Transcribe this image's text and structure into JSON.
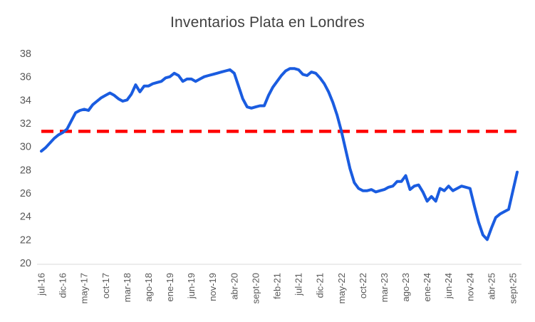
{
  "chart_data": {
    "type": "line",
    "title": "Inventarios Plata en Londres",
    "xlabel": "",
    "ylabel": "",
    "ylim": [
      20,
      38
    ],
    "y_ticks": [
      20,
      22,
      24,
      26,
      28,
      30,
      32,
      34,
      36,
      38
    ],
    "grid": false,
    "legend": "none",
    "tick_every": 5,
    "x_tick_labels_visible": [
      "jul-16",
      "dic-16",
      "may-17",
      "oct-17",
      "mar-18",
      "ago-18",
      "ene-19",
      "jun-19",
      "nov-19",
      "abr-20",
      "sept-20",
      "feb-21",
      "jul-21",
      "dic-21",
      "may-22",
      "oct-22",
      "mar-23",
      "ago-23",
      "ene-24",
      "jun-24",
      "nov-24",
      "abr-25",
      "sept-25"
    ],
    "x": [
      "jul-16",
      "ago-16",
      "sept-16",
      "oct-16",
      "nov-16",
      "dic-16",
      "ene-17",
      "feb-17",
      "mar-17",
      "abr-17",
      "may-17",
      "jun-17",
      "jul-17",
      "ago-17",
      "sept-17",
      "oct-17",
      "nov-17",
      "dic-17",
      "ene-18",
      "feb-18",
      "mar-18",
      "abr-18",
      "may-18",
      "jun-18",
      "jul-18",
      "ago-18",
      "sept-18",
      "oct-18",
      "nov-18",
      "dic-18",
      "ene-19",
      "feb-19",
      "mar-19",
      "abr-19",
      "may-19",
      "jun-19",
      "jul-19",
      "ago-19",
      "sept-19",
      "oct-19",
      "nov-19",
      "dic-19",
      "ene-20",
      "feb-20",
      "mar-20",
      "abr-20",
      "may-20",
      "jun-20",
      "jul-20",
      "ago-20",
      "sept-20",
      "oct-20",
      "nov-20",
      "dic-20",
      "ene-21",
      "feb-21",
      "mar-21",
      "abr-21",
      "may-21",
      "jun-21",
      "jul-21",
      "ago-21",
      "sept-21",
      "oct-21",
      "nov-21",
      "dic-21",
      "ene-22",
      "feb-22",
      "mar-22",
      "abr-22",
      "may-22",
      "jun-22",
      "jul-22",
      "ago-22",
      "sept-22",
      "oct-22",
      "nov-22",
      "dic-22",
      "ene-23",
      "feb-23",
      "mar-23",
      "abr-23",
      "may-23",
      "jun-23",
      "jul-23",
      "ago-23",
      "sept-23",
      "oct-23",
      "nov-23",
      "dic-23",
      "ene-24",
      "feb-24",
      "mar-24",
      "abr-24",
      "may-24",
      "jun-24",
      "jul-24",
      "ago-24",
      "sept-24",
      "oct-24",
      "nov-24",
      "dic-24",
      "ene-25",
      "feb-25",
      "mar-25",
      "abr-25",
      "may-25",
      "jun-25",
      "jul-25",
      "ago-25",
      "sept-25",
      "oct-25"
    ],
    "series": [
      {
        "name": "Inventarios Plata en Londres",
        "values": [
          29.6,
          29.9,
          30.3,
          30.7,
          31.0,
          31.2,
          31.5,
          32.2,
          32.9,
          33.1,
          33.2,
          33.1,
          33.6,
          33.9,
          34.2,
          34.4,
          34.6,
          34.4,
          34.1,
          33.9,
          34.0,
          34.5,
          35.3,
          34.7,
          35.2,
          35.2,
          35.4,
          35.5,
          35.6,
          35.9,
          36.0,
          36.3,
          36.1,
          35.6,
          35.8,
          35.8,
          35.6,
          35.8,
          36.0,
          36.1,
          36.2,
          36.3,
          36.4,
          36.5,
          36.6,
          36.3,
          35.2,
          34.1,
          33.4,
          33.3,
          33.4,
          33.5,
          33.5,
          34.4,
          35.1,
          35.6,
          36.1,
          36.5,
          36.7,
          36.7,
          36.6,
          36.2,
          36.1,
          36.4,
          36.3,
          35.9,
          35.4,
          34.7,
          33.8,
          32.7,
          31.3,
          29.7,
          28.1,
          26.9,
          26.4,
          26.2,
          26.2,
          26.3,
          26.1,
          26.2,
          26.3,
          26.5,
          26.6,
          27.0,
          27.0,
          27.5,
          26.3,
          26.6,
          26.7,
          26.1,
          25.3,
          25.7,
          25.3,
          26.4,
          26.2,
          26.6,
          26.2,
          26.4,
          26.6,
          26.5,
          26.4,
          24.9,
          23.5,
          22.4,
          22.0,
          23.0,
          23.9,
          24.2,
          24.4,
          24.6,
          26.2,
          27.8
        ]
      }
    ],
    "reference_line": {
      "value": 31.3,
      "style": "dashed",
      "color": "#FF0000"
    },
    "colors": {
      "series": "#1A5CE0",
      "reference": "#FF0000",
      "text": "#595959",
      "title": "#404040",
      "axis_line": "#D9D9D9",
      "background": "#FFFFFF"
    }
  }
}
